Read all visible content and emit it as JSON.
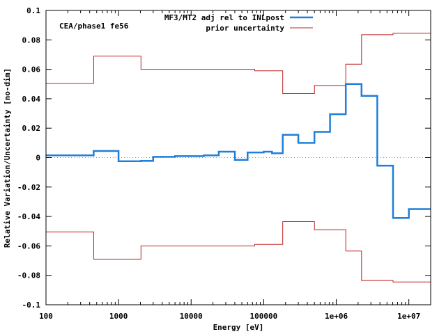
{
  "chart_data": {
    "type": "line",
    "step": true,
    "xscale": "log",
    "xlim": [
      100,
      20000000
    ],
    "ylim": [
      -0.1,
      0.1
    ],
    "xlabel": "Energy [eV]",
    "ylabel": "Relative Variation/Uncertainty [no-dim]",
    "annotation": "CEA/phase1 fe56",
    "xticks": [
      {
        "v": 100,
        "label": "100"
      },
      {
        "v": 1000,
        "label": "1000"
      },
      {
        "v": 10000,
        "label": "10000"
      },
      {
        "v": 100000,
        "label": "100000"
      },
      {
        "v": 1000000,
        "label": "1e+06"
      },
      {
        "v": 10000000,
        "label": "1e+07"
      }
    ],
    "yticks": [
      {
        "v": 0.1,
        "label": "0.1"
      },
      {
        "v": 0.08,
        "label": "0.08"
      },
      {
        "v": 0.06,
        "label": "0.06"
      },
      {
        "v": 0.04,
        "label": "0.04"
      },
      {
        "v": 0.02,
        "label": "0.02"
      },
      {
        "v": 0,
        "label": "0"
      },
      {
        "v": -0.02,
        "label": "-0.02"
      },
      {
        "v": -0.04,
        "label": "-0.04"
      },
      {
        "v": -0.06,
        "label": "-0.06"
      },
      {
        "v": -0.08,
        "label": "-0.08"
      },
      {
        "v": -0.1,
        "label": "-0.1"
      }
    ],
    "zero_line": true,
    "legend_position": "top-right",
    "series": [
      {
        "name": "MF3/MT2 adj rel to INLpost",
        "color": "#1f7fd9",
        "kind": "step",
        "edges": [
          100,
          300,
          454,
          1000,
          2035,
          3000,
          6000,
          15000,
          24000,
          40000,
          60000,
          100000,
          130000,
          183000,
          300000,
          500000,
          821000,
          1353000,
          2231000,
          3679000,
          6065000,
          10000000,
          20000000
        ],
        "values": [
          0.0015,
          0.0015,
          0.0045,
          -0.0025,
          -0.0022,
          0.0005,
          0.001,
          0.0015,
          0.004,
          -0.0015,
          0.0035,
          0.004,
          0.003,
          0.0155,
          0.01,
          0.0175,
          0.0295,
          0.05,
          0.042,
          -0.0055,
          -0.041,
          -0.035
        ]
      },
      {
        "name": "prior uncertainty",
        "color": "#c02020",
        "kind": "step",
        "mirror": true,
        "edges": [
          100,
          454,
          2035,
          75000,
          183000,
          500000,
          1353000,
          2231000,
          6065000,
          20000000
        ],
        "values": [
          0.0505,
          0.069,
          0.06,
          0.059,
          0.0435,
          0.049,
          0.0635,
          0.0835,
          0.0845
        ]
      }
    ]
  }
}
